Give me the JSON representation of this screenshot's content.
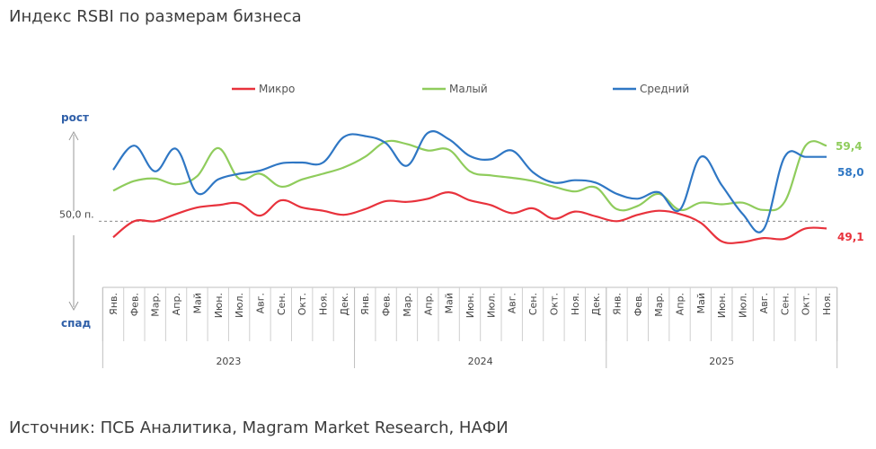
{
  "title": "Индекс RSBI по размерам бизнеса",
  "source": "Источник: ПСБ Аналитика, Magram Market Research, НАФИ",
  "chart_data": {
    "type": "line",
    "title": "Индекс RSBI по размерам бизнеса",
    "axis_top_label": "рост",
    "axis_bottom_label": "спад",
    "reference_line": {
      "value": 50.0,
      "label": "50,0 п."
    },
    "legend_position": "top",
    "years": [
      {
        "label": "2023",
        "span": 12
      },
      {
        "label": "2024",
        "span": 12
      },
      {
        "label": "2025",
        "span": 11
      }
    ],
    "categories": [
      "Янв.",
      "Фев.",
      "Мар.",
      "Апр.",
      "Май",
      "Июн.",
      "Июл.",
      "Авг.",
      "Сен.",
      "Окт.",
      "Ноя.",
      "Дек.",
      "Янв.",
      "Фев.",
      "Мар.",
      "Апр.",
      "Май",
      "Июн.",
      "Июл.",
      "Авг.",
      "Сен.",
      "Окт.",
      "Ноя.",
      "Дек.",
      "Янв.",
      "Фев.",
      "Мар.",
      "Апр.",
      "Май",
      "Июн.",
      "Июл.",
      "Авг.",
      "Сен.",
      "Окт.",
      "Ноя."
    ],
    "ylim": [
      44,
      63
    ],
    "series": [
      {
        "name": "Микро",
        "color": "#e8323c",
        "end_label": "49,1",
        "values": [
          48.0,
          50.0,
          50.0,
          50.9,
          51.7,
          52.0,
          52.2,
          50.7,
          52.6,
          51.7,
          51.3,
          50.8,
          51.5,
          52.5,
          52.4,
          52.8,
          53.6,
          52.6,
          52.0,
          51.0,
          51.6,
          50.3,
          51.2,
          50.6,
          50.0,
          50.8,
          51.3,
          50.9,
          49.8,
          47.5,
          47.4,
          47.9,
          47.8,
          49.1,
          49.1
        ]
      },
      {
        "name": "Малый",
        "color": "#8fcc5c",
        "end_label": "59,4",
        "values": [
          53.8,
          55.0,
          55.3,
          54.6,
          55.6,
          59.1,
          55.3,
          55.9,
          54.3,
          55.2,
          55.9,
          56.7,
          58.0,
          59.9,
          59.6,
          58.8,
          58.9,
          56.2,
          55.7,
          55.4,
          55.0,
          54.3,
          53.7,
          54.2,
          51.5,
          51.9,
          53.4,
          51.4,
          52.3,
          52.1,
          52.3,
          51.4,
          52.4,
          59.4,
          59.4
        ]
      },
      {
        "name": "Средний",
        "color": "#2f77c4",
        "end_label": "58,0",
        "values": [
          56.4,
          59.4,
          56.2,
          59.0,
          53.5,
          55.2,
          55.9,
          56.3,
          57.2,
          57.3,
          57.3,
          60.5,
          60.6,
          59.7,
          56.9,
          61.0,
          60.2,
          58.1,
          57.7,
          58.8,
          56.1,
          54.8,
          55.1,
          54.8,
          53.4,
          52.8,
          53.6,
          51.4,
          58.0,
          54.5,
          50.9,
          49.0,
          58.0,
          58.0,
          58.0
        ]
      }
    ],
    "grid": false
  }
}
